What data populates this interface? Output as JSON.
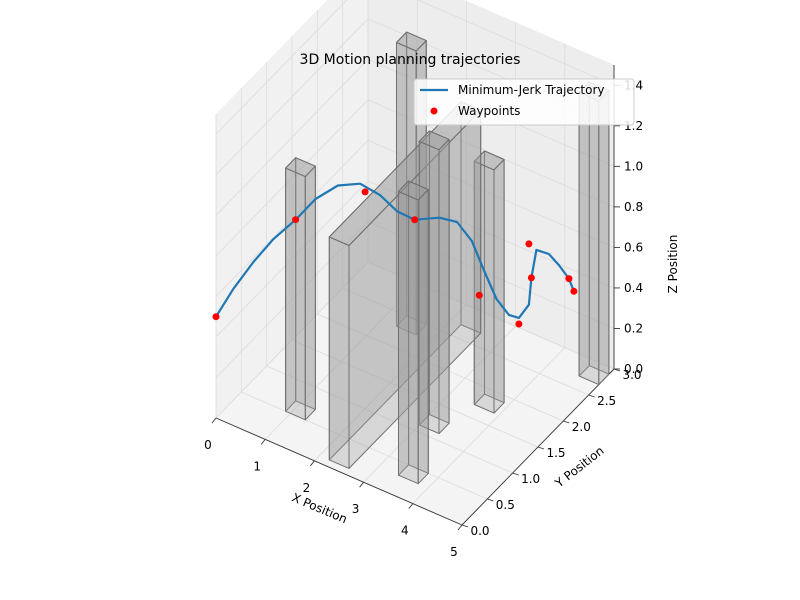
{
  "chart_data": {
    "type": "line",
    "projection": "3d",
    "title": "3D Motion planning trajectories",
    "xlabel": "X Position",
    "ylabel": "Y Position",
    "zlabel": "Z Position",
    "xlim": [
      0,
      5
    ],
    "ylim": [
      0,
      3
    ],
    "zlim": [
      0,
      1.5
    ],
    "xticks": [
      "0",
      "1",
      "2",
      "3",
      "4",
      "5"
    ],
    "yticks": [
      "0.0",
      "0.5",
      "1.0",
      "1.5",
      "2.0",
      "2.5",
      "3.0"
    ],
    "zticks": [
      "0.0",
      "0.2",
      "0.4",
      "0.6",
      "0.8",
      "1.0",
      "1.2",
      "1.4"
    ],
    "grid": true,
    "legend": {
      "placement": "top-right",
      "entries": [
        "Minimum-Jerk Trajectory",
        "Waypoints"
      ]
    },
    "colors": {
      "trajectory": "#1f77b4",
      "waypoints": "#ff0000",
      "obstacle_fill": "#9a9a9a",
      "obstacle_edge": "#707070",
      "pane": "#f2f2f2",
      "grid": "#dcdcdc"
    },
    "series": [
      {
        "name": "Minimum-Jerk Trajectory",
        "kind": "line",
        "points": [
          [
            0.0,
            0.0,
            0.5
          ],
          [
            0.2,
            0.15,
            0.62
          ],
          [
            0.45,
            0.3,
            0.74
          ],
          [
            0.7,
            0.45,
            0.84
          ],
          [
            1.0,
            0.6,
            0.93
          ],
          [
            1.25,
            0.75,
            1.02
          ],
          [
            1.55,
            0.9,
            1.08
          ],
          [
            1.9,
            1.0,
            1.1
          ],
          [
            2.2,
            1.1,
            1.05
          ],
          [
            2.45,
            1.2,
            0.97
          ],
          [
            2.7,
            1.3,
            0.93
          ],
          [
            3.0,
            1.5,
            0.92
          ],
          [
            3.25,
            1.6,
            0.9
          ],
          [
            3.5,
            1.65,
            0.82
          ],
          [
            3.7,
            1.7,
            0.68
          ],
          [
            3.9,
            1.75,
            0.55
          ],
          [
            4.1,
            1.8,
            0.48
          ],
          [
            4.2,
            1.9,
            0.45
          ],
          [
            4.3,
            2.0,
            0.5
          ],
          [
            4.3,
            2.05,
            0.62
          ],
          [
            4.35,
            2.1,
            0.75
          ],
          [
            4.5,
            2.2,
            0.72
          ],
          [
            4.6,
            2.3,
            0.65
          ],
          [
            4.65,
            2.45,
            0.55
          ],
          [
            4.7,
            2.5,
            0.48
          ]
        ]
      },
      {
        "name": "Waypoints",
        "kind": "scatter",
        "points": [
          [
            0.0,
            0.0,
            0.5
          ],
          [
            1.0,
            0.6,
            0.93
          ],
          [
            2.0,
            1.0,
            1.07
          ],
          [
            2.7,
            1.3,
            0.93
          ],
          [
            3.6,
            1.7,
            0.55
          ],
          [
            4.2,
            1.9,
            0.42
          ],
          [
            4.3,
            2.05,
            0.62
          ],
          [
            4.3,
            2.0,
            0.8
          ],
          [
            4.65,
            2.45,
            0.55
          ],
          [
            4.7,
            2.5,
            0.48
          ]
        ]
      }
    ],
    "obstacles": [
      {
        "x": [
          0.9,
          1.3
        ],
        "y": [
          0.5,
          0.7
        ],
        "z": [
          0.0,
          1.2
        ]
      },
      {
        "x": [
          1.3,
          1.7
        ],
        "y": [
          2.3,
          2.5
        ],
        "z": [
          0.0,
          1.4
        ]
      },
      {
        "x": [
          2.2,
          2.6
        ],
        "y": [
          0.1,
          2.7
        ],
        "z": [
          0.0,
          1.1
        ]
      },
      {
        "x": [
          3.0,
          3.4
        ],
        "y": [
          1.1,
          1.3
        ],
        "z": [
          0.0,
          1.4
        ]
      },
      {
        "x": [
          3.4,
          3.8
        ],
        "y": [
          0.3,
          0.5
        ],
        "z": [
          0.0,
          1.4
        ]
      },
      {
        "x": [
          3.5,
          3.9
        ],
        "y": [
          1.7,
          1.9
        ],
        "z": [
          0.0,
          1.2
        ]
      },
      {
        "x": [
          4.6,
          5.0
        ],
        "y": [
          2.7,
          2.9
        ],
        "z": [
          0.0,
          1.4
        ]
      }
    ]
  }
}
